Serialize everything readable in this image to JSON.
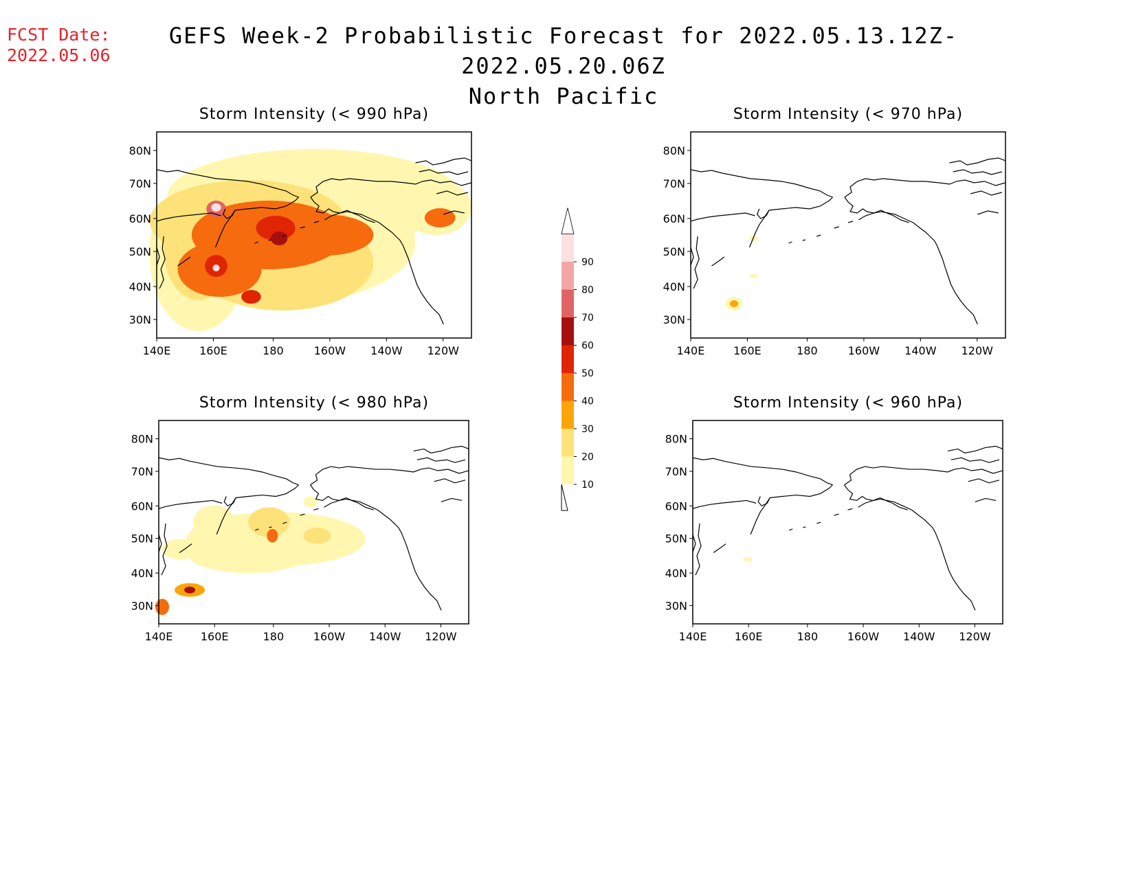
{
  "header": {
    "fcst_label": "FCST Date:",
    "fcst_date": "2022.05.06",
    "title_line1": "GEFS Week-2 Probabilistic Forecast for 2022.05.13.12Z-2022.05.20.06Z",
    "title_line2": "North Pacific"
  },
  "axes": {
    "lon_labels": [
      "140E",
      "160E",
      "180",
      "160W",
      "140W",
      "120W"
    ],
    "lat_labels": [
      "80N",
      "70N",
      "60N",
      "50N",
      "40N",
      "30N"
    ]
  },
  "panels": [
    {
      "id": "p990",
      "title": "Storm Intensity (< 990 hPa)"
    },
    {
      "id": "p970",
      "title": "Storm Intensity (< 970 hPa)"
    },
    {
      "id": "p980",
      "title": "Storm Intensity (< 980 hPa)"
    },
    {
      "id": "p960",
      "title": "Storm Intensity (< 960 hPa)"
    }
  ],
  "colorbar": {
    "levels": [
      "10",
      "20",
      "30",
      "40",
      "50",
      "60",
      "70",
      "80",
      "90"
    ],
    "colors": [
      "#fff7b0",
      "#fde27a",
      "#fca50a",
      "#f66b0e",
      "#e02505",
      "#a50f0f",
      "#e06464",
      "#f4a6a6",
      "#fde0e0"
    ]
  }
}
